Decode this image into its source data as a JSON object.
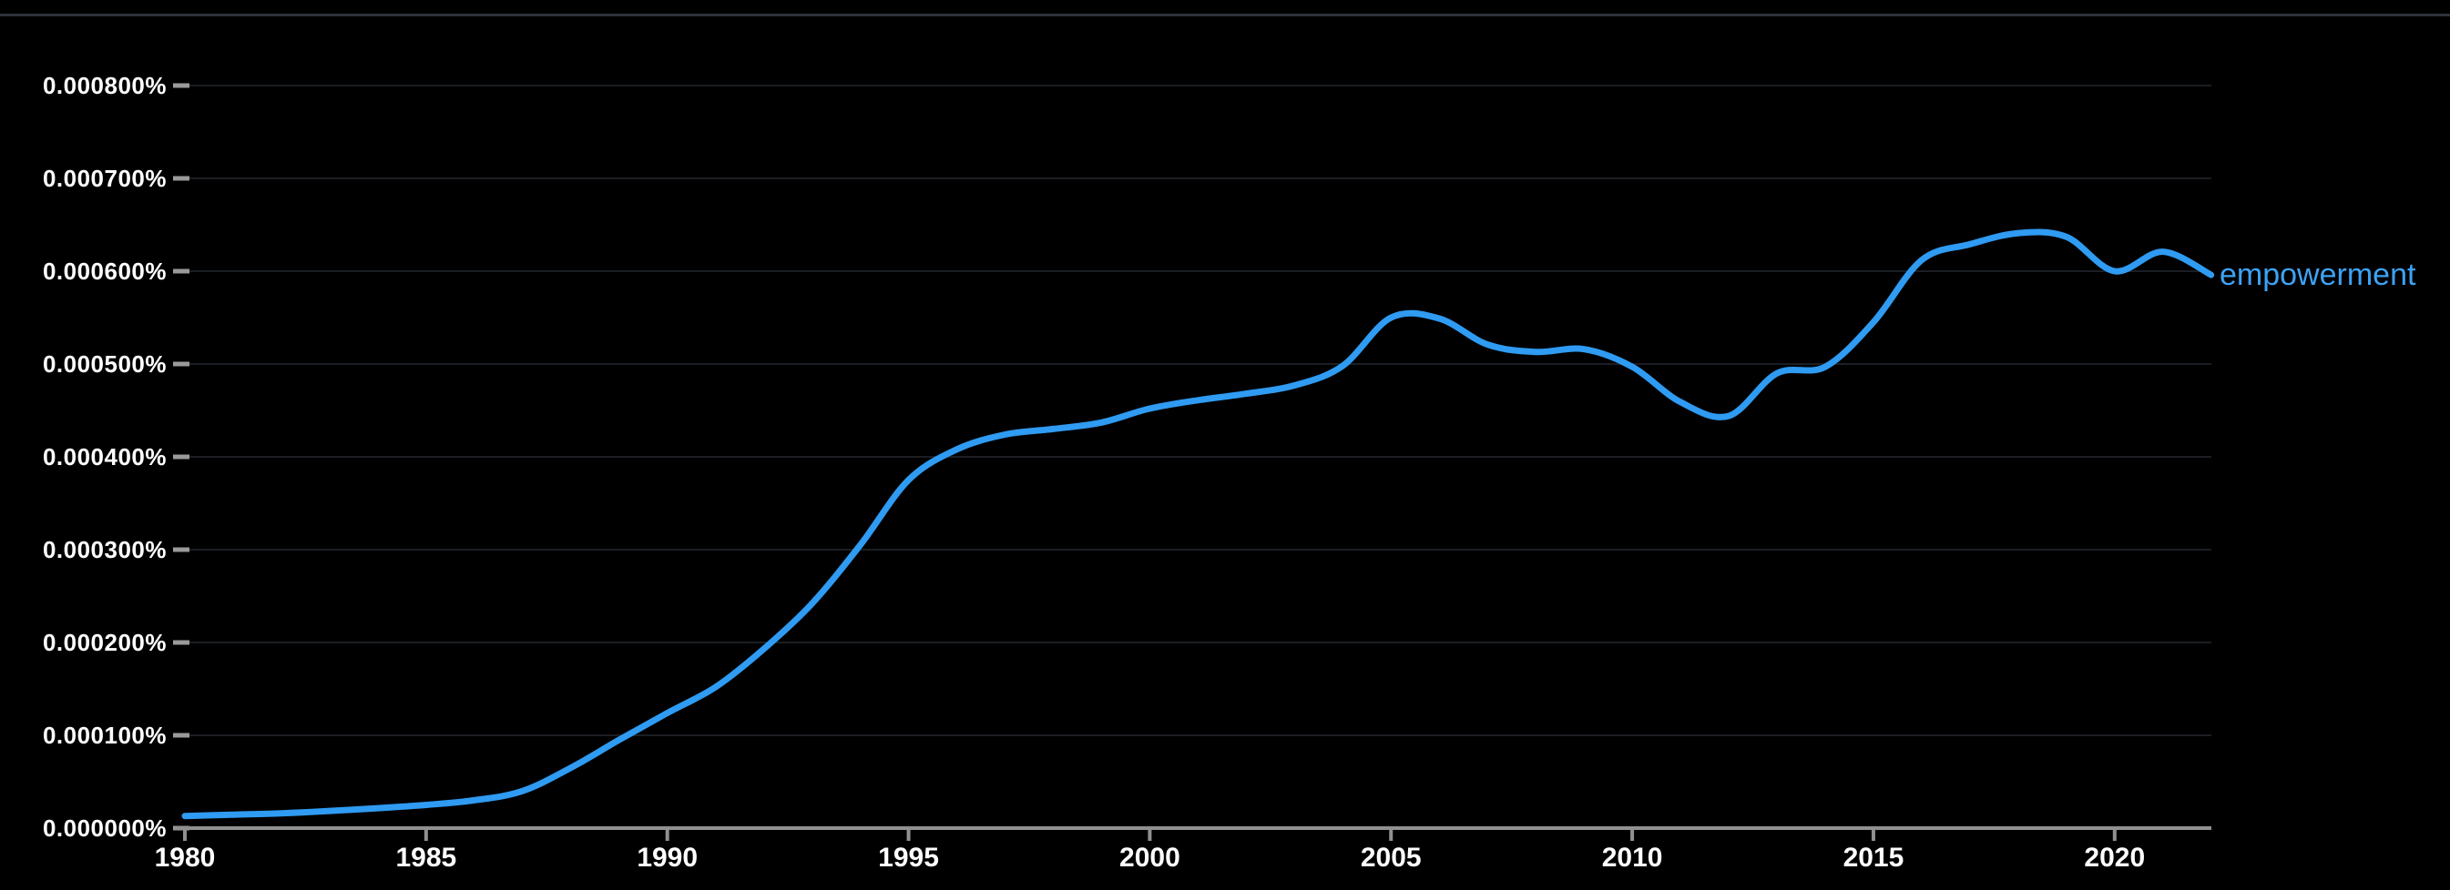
{
  "chart_data": {
    "type": "line",
    "title": "",
    "xlabel": "",
    "ylabel": "",
    "value_unit": "percent",
    "x": [
      1980,
      1981,
      1982,
      1983,
      1984,
      1985,
      1986,
      1987,
      1988,
      1989,
      1990,
      1991,
      1992,
      1993,
      1994,
      1995,
      1996,
      1997,
      1998,
      1999,
      2000,
      2001,
      2002,
      2003,
      2004,
      2005,
      2006,
      2007,
      2008,
      2009,
      2010,
      2011,
      2012,
      2013,
      2014,
      2015,
      2016,
      2017,
      2018,
      2019,
      2020,
      2021,
      2022
    ],
    "series": [
      {
        "name": "empowerment",
        "color": "#2f9bf2",
        "values": [
          1.3e-05,
          1.45e-05,
          1.6e-05,
          1.85e-05,
          2.15e-05,
          2.5e-05,
          3e-05,
          4e-05,
          6.5e-05,
          9.5e-05,
          0.000124,
          0.000152,
          0.000193,
          0.000242,
          0.000305,
          0.000375,
          0.000408,
          0.000424,
          0.00043,
          0.000437,
          0.000452,
          0.000461,
          0.000468,
          0.000477,
          0.000498,
          0.00055,
          0.000549,
          0.000521,
          0.000513,
          0.000516,
          0.000497,
          0.000459,
          0.000444,
          0.00049,
          0.000497,
          0.000545,
          0.000612,
          0.000629,
          0.000641,
          0.000637,
          0.0006,
          0.000621,
          0.000596
        ]
      }
    ],
    "xlim": [
      1980,
      2022.3
    ],
    "ylim": [
      0,
      0.00085
    ],
    "grid": "horizontal",
    "legend_position": "line-end",
    "y_ticks": [
      {
        "value": 0.0,
        "label": "0.000000%"
      },
      {
        "value": 0.0001,
        "label": "0.000100%"
      },
      {
        "value": 0.0002,
        "label": "0.000200%"
      },
      {
        "value": 0.0003,
        "label": "0.000300%"
      },
      {
        "value": 0.0004,
        "label": "0.000400%"
      },
      {
        "value": 0.0005,
        "label": "0.000500%"
      },
      {
        "value": 0.0006,
        "label": "0.000600%"
      },
      {
        "value": 0.0007,
        "label": "0.000700%"
      },
      {
        "value": 0.0008,
        "label": "0.000800%"
      }
    ],
    "x_ticks": [
      {
        "value": 1980,
        "label": "1980"
      },
      {
        "value": 1985,
        "label": "1985"
      },
      {
        "value": 1990,
        "label": "1990"
      },
      {
        "value": 1995,
        "label": "1995"
      },
      {
        "value": 2000,
        "label": "2000"
      },
      {
        "value": 2005,
        "label": "2005"
      },
      {
        "value": 2010,
        "label": "2010"
      },
      {
        "value": 2015,
        "label": "2015"
      },
      {
        "value": 2020,
        "label": "2020"
      }
    ],
    "colors": {
      "background": "#000000",
      "top_divider": "#2e333a",
      "axis": "#909090",
      "tick": "#9a9a9a",
      "gridline": "#1b1e22",
      "tick_label": "#ffffff",
      "series_label": "#3ea2f5"
    }
  }
}
